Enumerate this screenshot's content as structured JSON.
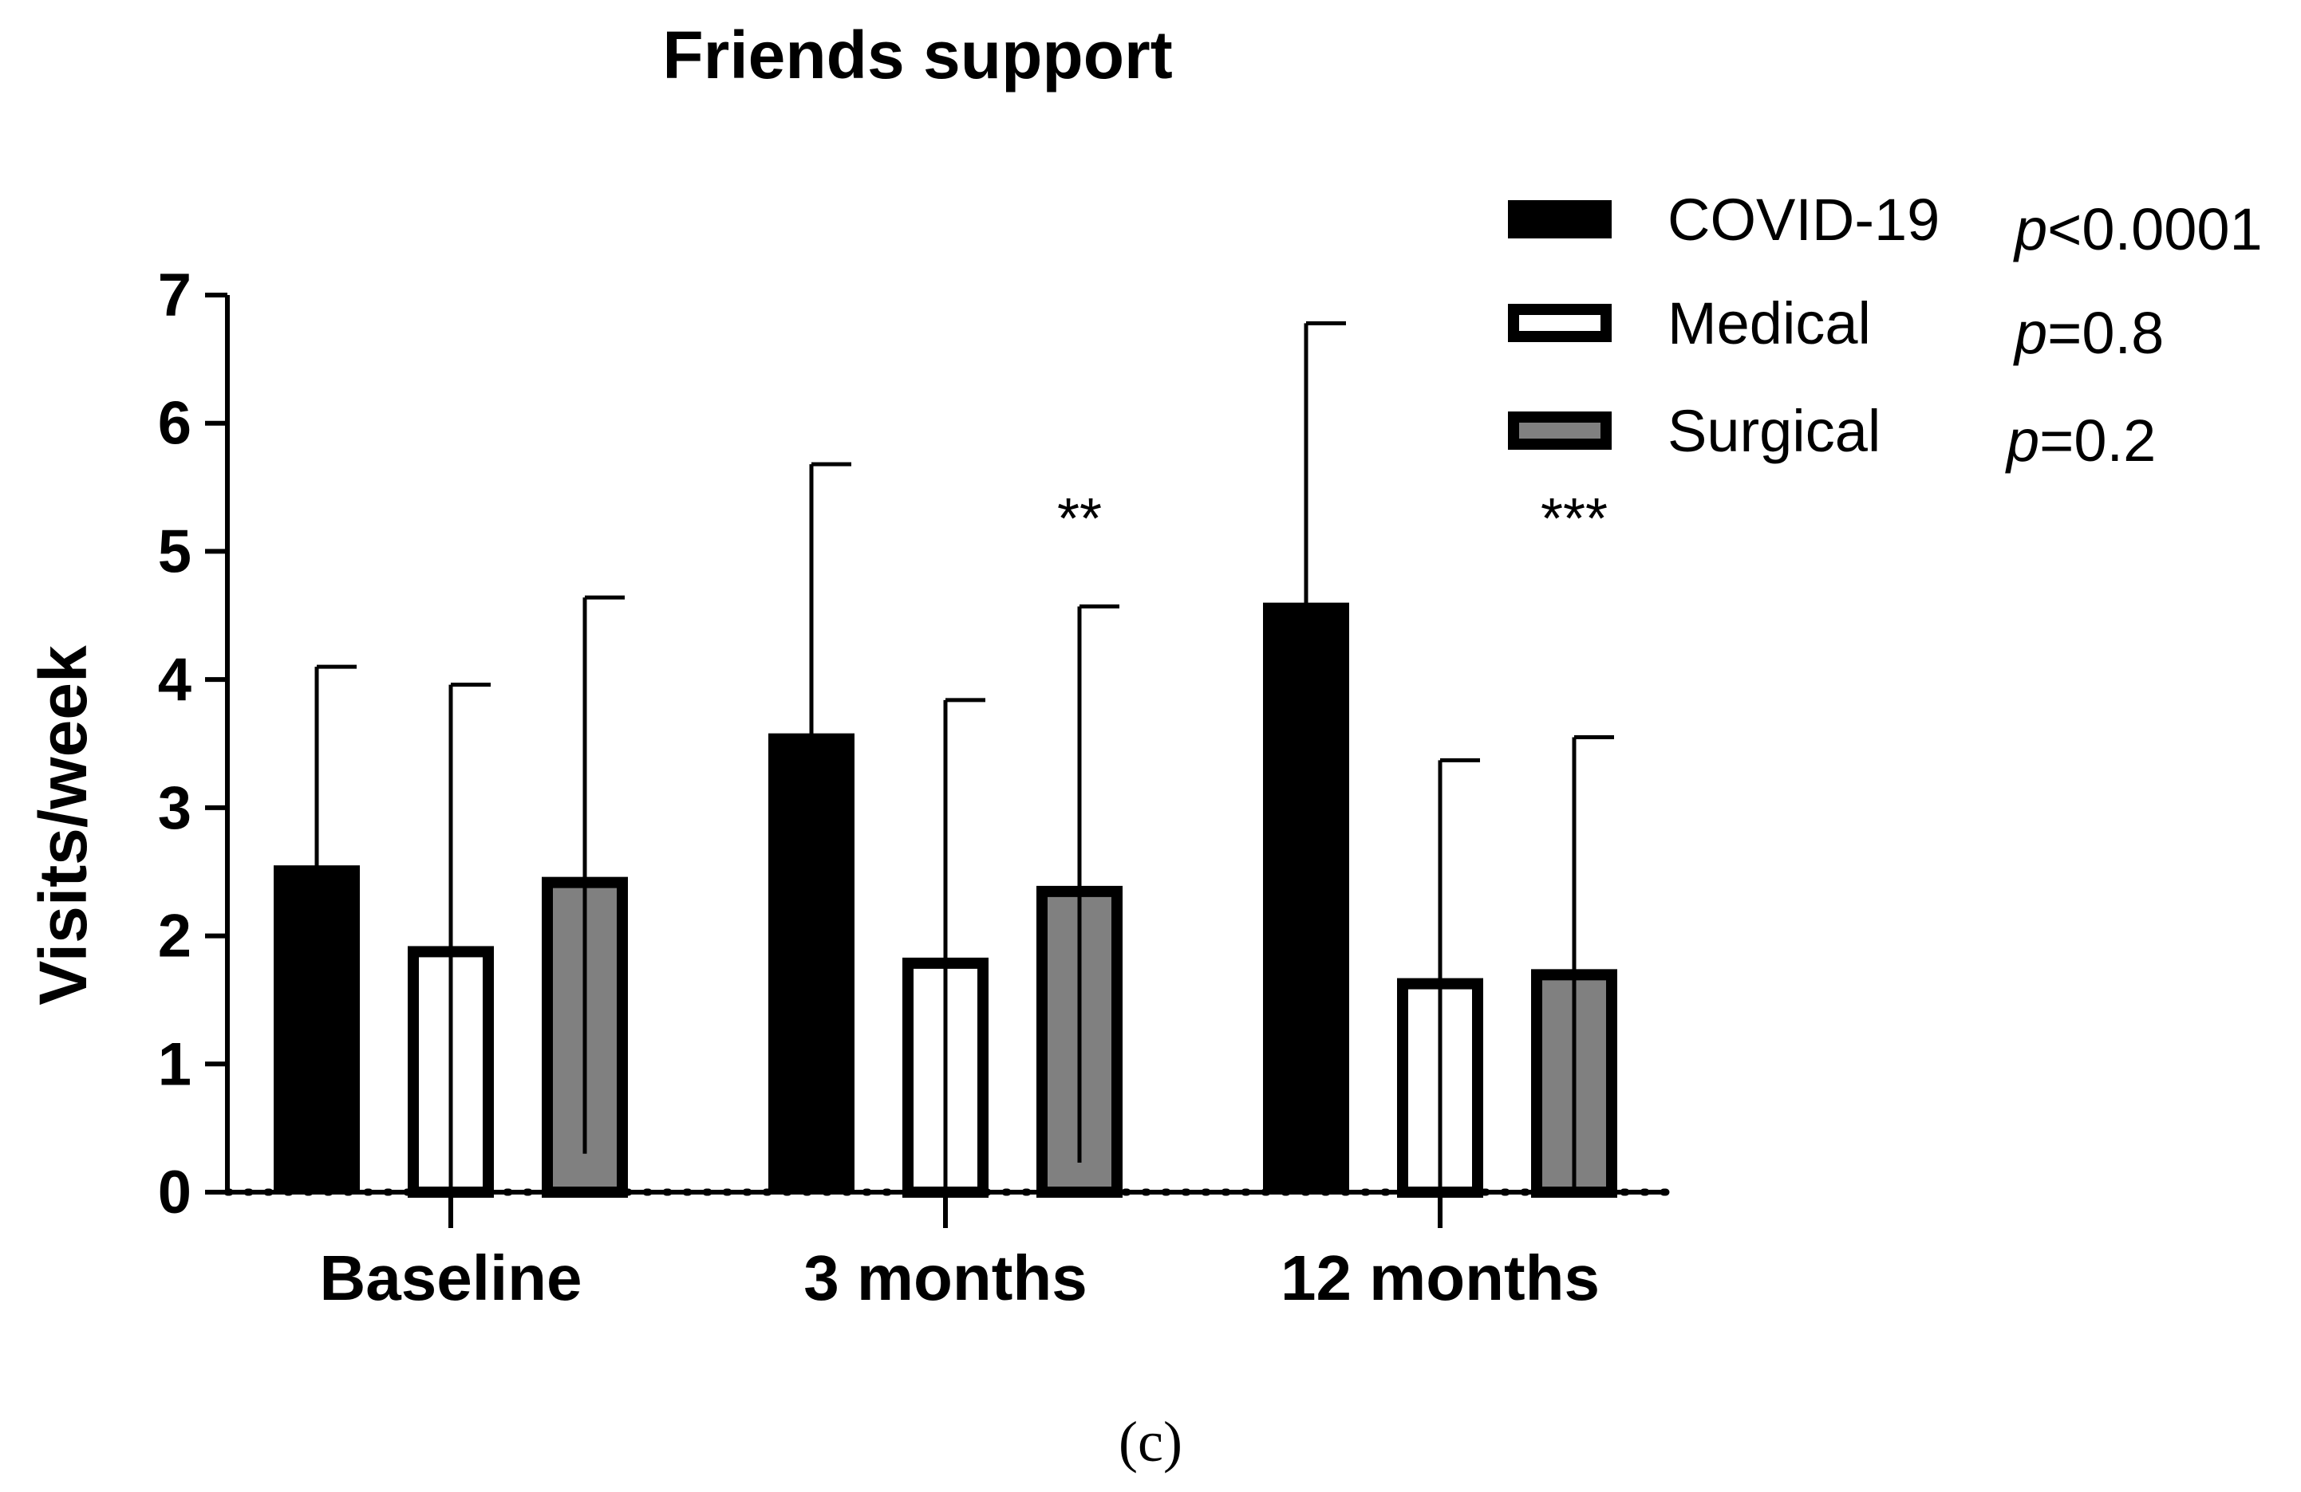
{
  "chart_data": {
    "type": "bar",
    "title": "Friends support",
    "xlabel": "",
    "ylabel": "Visits/week",
    "ylim": [
      0,
      7
    ],
    "yticks": [
      "0",
      "1",
      "2",
      "3",
      "4",
      "5",
      "6",
      "7"
    ],
    "categories": [
      "Baseline",
      "3 months",
      "12 months"
    ],
    "series": [
      {
        "name": "COVID-19",
        "pvalue_prefix": "p",
        "pvalue_text": "<0.0001",
        "color": "#000000",
        "values": [
          2.55,
          3.58,
          4.6
        ],
        "error_upper": [
          4.1,
          5.68,
          6.78
        ]
      },
      {
        "name": "Medical",
        "pvalue_prefix": "p",
        "pvalue_text": "=0.8",
        "color": "#ffffff",
        "values": [
          1.92,
          1.83,
          1.67
        ],
        "error_upper": [
          3.96,
          3.84,
          3.37
        ]
      },
      {
        "name": "Surgical",
        "pvalue_prefix": "p",
        "pvalue_text": "=0.2",
        "color": "#808080",
        "values": [
          2.46,
          2.39,
          1.74
        ],
        "error_upper": [
          4.64,
          4.57,
          3.55
        ],
        "error_lower": [
          0.3,
          0.23,
          null
        ]
      }
    ],
    "annotations": [
      {
        "text": "**",
        "category": "3 months",
        "series": "Surgical"
      },
      {
        "text": "***",
        "category": "12 months",
        "series": "Surgical"
      }
    ],
    "panel_label": "(c)",
    "grid": false,
    "legend_position": "top-right"
  }
}
